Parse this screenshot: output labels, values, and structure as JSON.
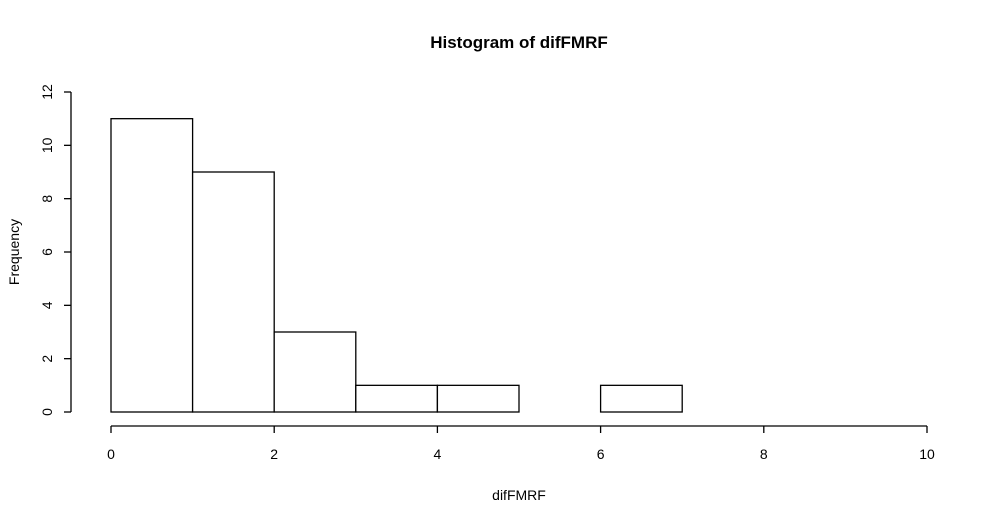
{
  "chart_data": {
    "type": "bar",
    "title": "Histogram of difFMRF",
    "xlabel": "difFMRF",
    "ylabel": "Frequency",
    "bins": [
      {
        "from": 0,
        "to": 1,
        "count": 11
      },
      {
        "from": 1,
        "to": 2,
        "count": 9
      },
      {
        "from": 2,
        "to": 3,
        "count": 3
      },
      {
        "from": 3,
        "to": 4,
        "count": 1
      },
      {
        "from": 4,
        "to": 5,
        "count": 1
      },
      {
        "from": 5,
        "to": 6,
        "count": 0
      },
      {
        "from": 6,
        "to": 7,
        "count": 1
      }
    ],
    "xlim": [
      0,
      10
    ],
    "ylim": [
      0,
      12
    ],
    "xticks": [
      "0",
      "2",
      "4",
      "6",
      "8",
      "10"
    ],
    "yticks": [
      "0",
      "2",
      "4",
      "6",
      "8",
      "10",
      "12"
    ],
    "grid": false
  }
}
